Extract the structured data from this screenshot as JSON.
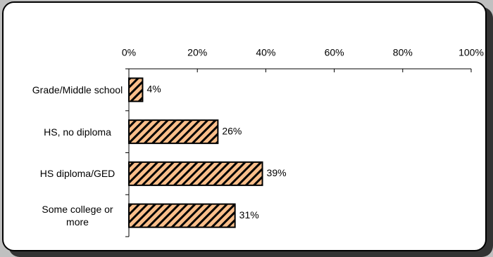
{
  "chart_data": {
    "type": "bar",
    "orientation": "horizontal",
    "categories": [
      "Grade/Middle school",
      "HS, no diploma",
      "HS diploma/GED",
      "Some college or more"
    ],
    "values": [
      4,
      26,
      39,
      31
    ],
    "value_labels": [
      "4%",
      "26%",
      "39%",
      "31%"
    ],
    "color": "#f9be8a",
    "hatch": true,
    "xlim": [
      0,
      100
    ],
    "xticks": [
      {
        "value": 0,
        "label": "0%"
      },
      {
        "value": 20,
        "label": "20%"
      },
      {
        "value": 40,
        "label": "40%"
      },
      {
        "value": 60,
        "label": "60%"
      },
      {
        "value": 80,
        "label": "80%"
      },
      {
        "value": 100,
        "label": "100%"
      }
    ],
    "grid": false
  }
}
